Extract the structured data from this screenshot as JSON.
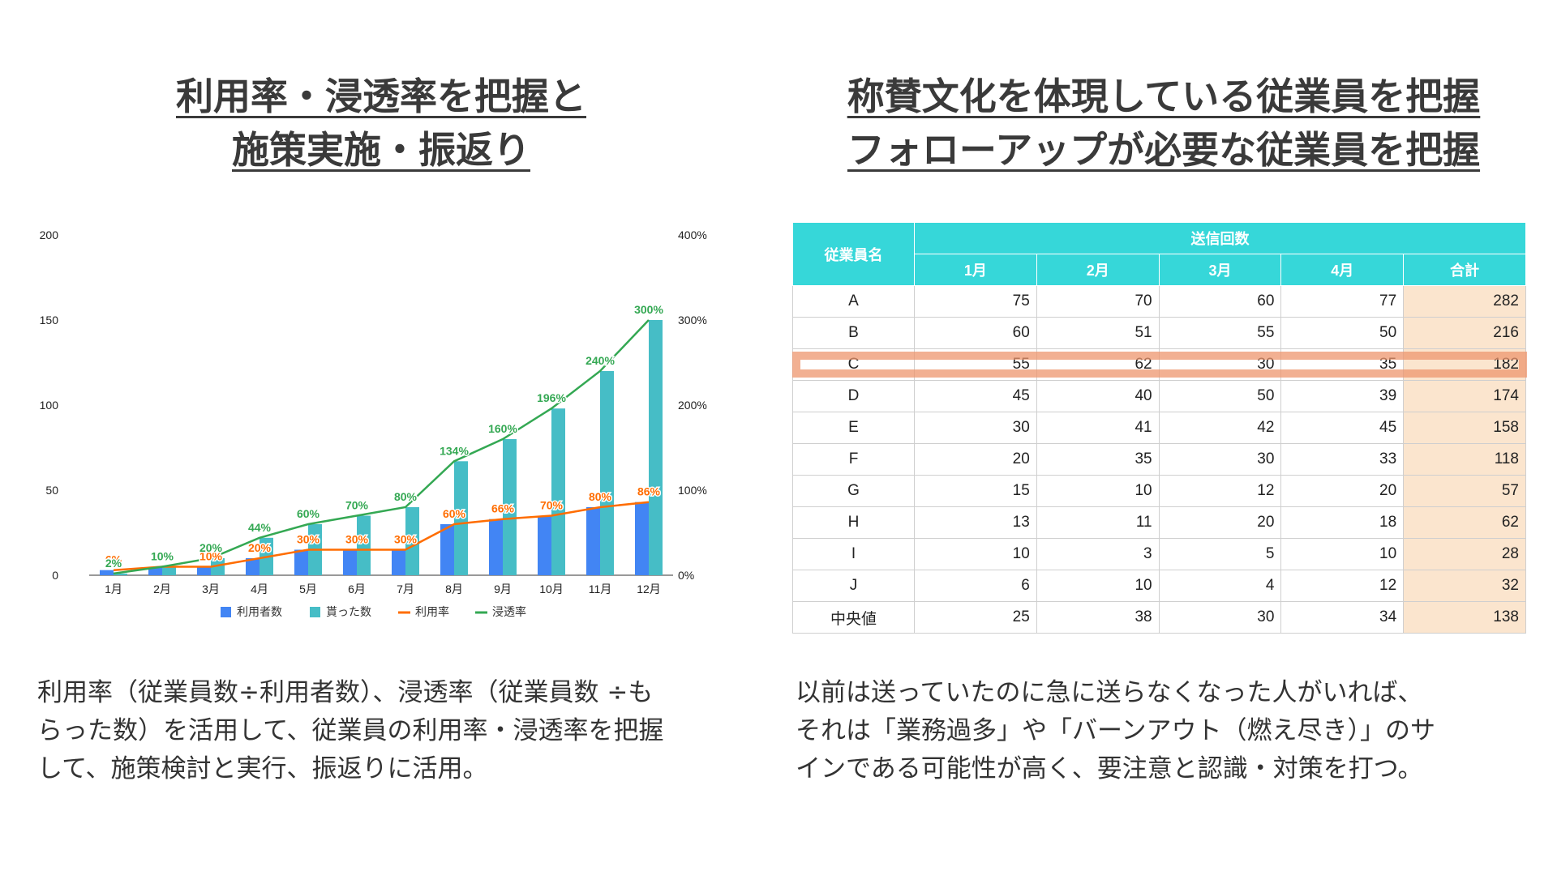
{
  "left": {
    "title_lines": [
      "利用率・浸透率を把握と",
      "施策実施・振返り"
    ],
    "description_lines": [
      "利用率（従業員数÷利用者数）、浸透率（従業員数 ÷も",
      "らった数）を活用して、従業員の利用率・浸透率を把握",
      "して、施策検討と実行、振返りに活用。"
    ]
  },
  "right": {
    "title_lines": [
      "称賛文化を体現している従業員を把握",
      "フォローアップが必要な従業員を把握"
    ],
    "description_lines": [
      "以前は送っていたのに急に送らなくなった人がいれば、",
      "それは「業務過多」や「バーンアウト（燃え尽き）」のサ",
      "インである可能性が高く、要注意と認識・対策を打つ。"
    ]
  },
  "chart_data": {
    "type": "bar",
    "categories": [
      "1月",
      "2月",
      "3月",
      "4月",
      "5月",
      "6月",
      "7月",
      "8月",
      "9月",
      "10月",
      "11月",
      "12月"
    ],
    "series": [
      {
        "name": "利用者数",
        "kind": "bar",
        "axis": "left",
        "color": "#4285f4",
        "values": [
          3,
          5,
          5,
          10,
          15,
          15,
          15,
          30,
          33,
          35,
          40,
          43
        ]
      },
      {
        "name": "貰った数",
        "kind": "bar",
        "axis": "left",
        "color": "#46bdc6",
        "values": [
          1,
          5,
          10,
          22,
          30,
          35,
          40,
          67,
          80,
          98,
          120,
          150
        ]
      },
      {
        "name": "利用率",
        "kind": "line",
        "axis": "right",
        "color": "#ff6d01",
        "values": [
          6,
          10,
          10,
          20,
          30,
          30,
          30,
          60,
          66,
          70,
          80,
          86
        ],
        "labels": [
          "6%",
          "10%",
          "10%",
          "20%",
          "30%",
          "30%",
          "30%",
          "60%",
          "66%",
          "70%",
          "80%",
          "86%"
        ]
      },
      {
        "name": "浸透率",
        "kind": "line",
        "axis": "right",
        "color": "#34a853",
        "values": [
          2,
          10,
          20,
          44,
          60,
          70,
          80,
          134,
          160,
          196,
          240,
          300
        ],
        "labels": [
          "2%",
          "10%",
          "20%",
          "44%",
          "60%",
          "70%",
          "80%",
          "134%",
          "160%",
          "196%",
          "240%",
          "300%"
        ]
      }
    ],
    "y_left": {
      "min": 0,
      "max": 200,
      "ticks": [
        "200",
        "150",
        "100",
        "50",
        "0"
      ],
      "tick_values": [
        200,
        150,
        100,
        50,
        0
      ]
    },
    "y_right": {
      "min": 0,
      "max": 400,
      "ticks": [
        "400%",
        "300%",
        "200%",
        "100%",
        "0%"
      ],
      "tick_values": [
        400,
        300,
        200,
        100,
        0
      ]
    },
    "legend": [
      "利用者数",
      "貰った数",
      "利用率",
      "浸透率"
    ],
    "legend_position": "bottom",
    "grid": false
  },
  "table": {
    "header_name": "従業員名",
    "header_group": "送信回数",
    "columns": [
      "1月",
      "2月",
      "3月",
      "4月",
      "合計"
    ],
    "rows": [
      {
        "name": "A",
        "values": [
          "75",
          "70",
          "60",
          "77",
          "282"
        ]
      },
      {
        "name": "B",
        "values": [
          "60",
          "51",
          "55",
          "50",
          "216"
        ]
      },
      {
        "name": "C",
        "values": [
          "55",
          "62",
          "30",
          "35",
          "182"
        ]
      },
      {
        "name": "D",
        "values": [
          "45",
          "40",
          "50",
          "39",
          "174"
        ]
      },
      {
        "name": "E",
        "values": [
          "30",
          "41",
          "42",
          "45",
          "158"
        ]
      },
      {
        "name": "F",
        "values": [
          "20",
          "35",
          "30",
          "33",
          "118"
        ]
      },
      {
        "name": "G",
        "values": [
          "15",
          "10",
          "12",
          "20",
          "57"
        ]
      },
      {
        "name": "H",
        "values": [
          "13",
          "11",
          "20",
          "18",
          "62"
        ]
      },
      {
        "name": "I",
        "values": [
          "10",
          "3",
          "5",
          "10",
          "28"
        ]
      },
      {
        "name": "J",
        "values": [
          "6",
          "10",
          "4",
          "12",
          "32"
        ]
      },
      {
        "name": "中央値",
        "values": [
          "25",
          "38",
          "30",
          "34",
          "138"
        ]
      }
    ],
    "highlighted_row": "C",
    "colors": {
      "header": "#36d7d9",
      "total_column": "#fbe5ce",
      "highlight": "#ee966e"
    }
  }
}
